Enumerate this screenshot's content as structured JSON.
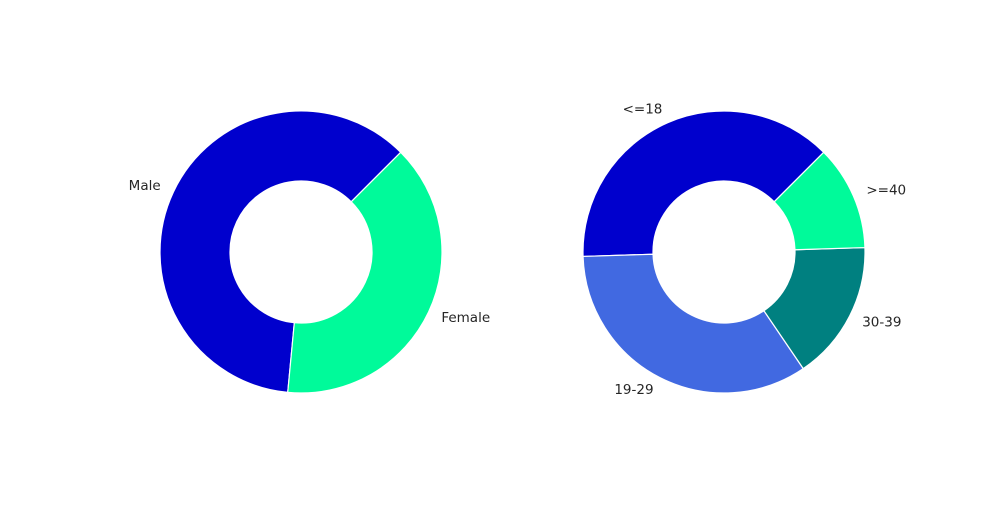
{
  "chart_data": [
    {
      "type": "pie",
      "donut": true,
      "categories": [
        "Male",
        "Female"
      ],
      "values": [
        61,
        39
      ],
      "colors": [
        "#0000cd",
        "#00fa9a"
      ],
      "legend": "none"
    },
    {
      "type": "pie",
      "donut": true,
      "categories": [
        "<=18",
        "19-29",
        "30-39",
        ">=40"
      ],
      "values": [
        38,
        34,
        16,
        12
      ],
      "colors": [
        "#0000cd",
        "#4169e1",
        "#008080",
        "#00fa9a"
      ],
      "legend": "none"
    }
  ]
}
